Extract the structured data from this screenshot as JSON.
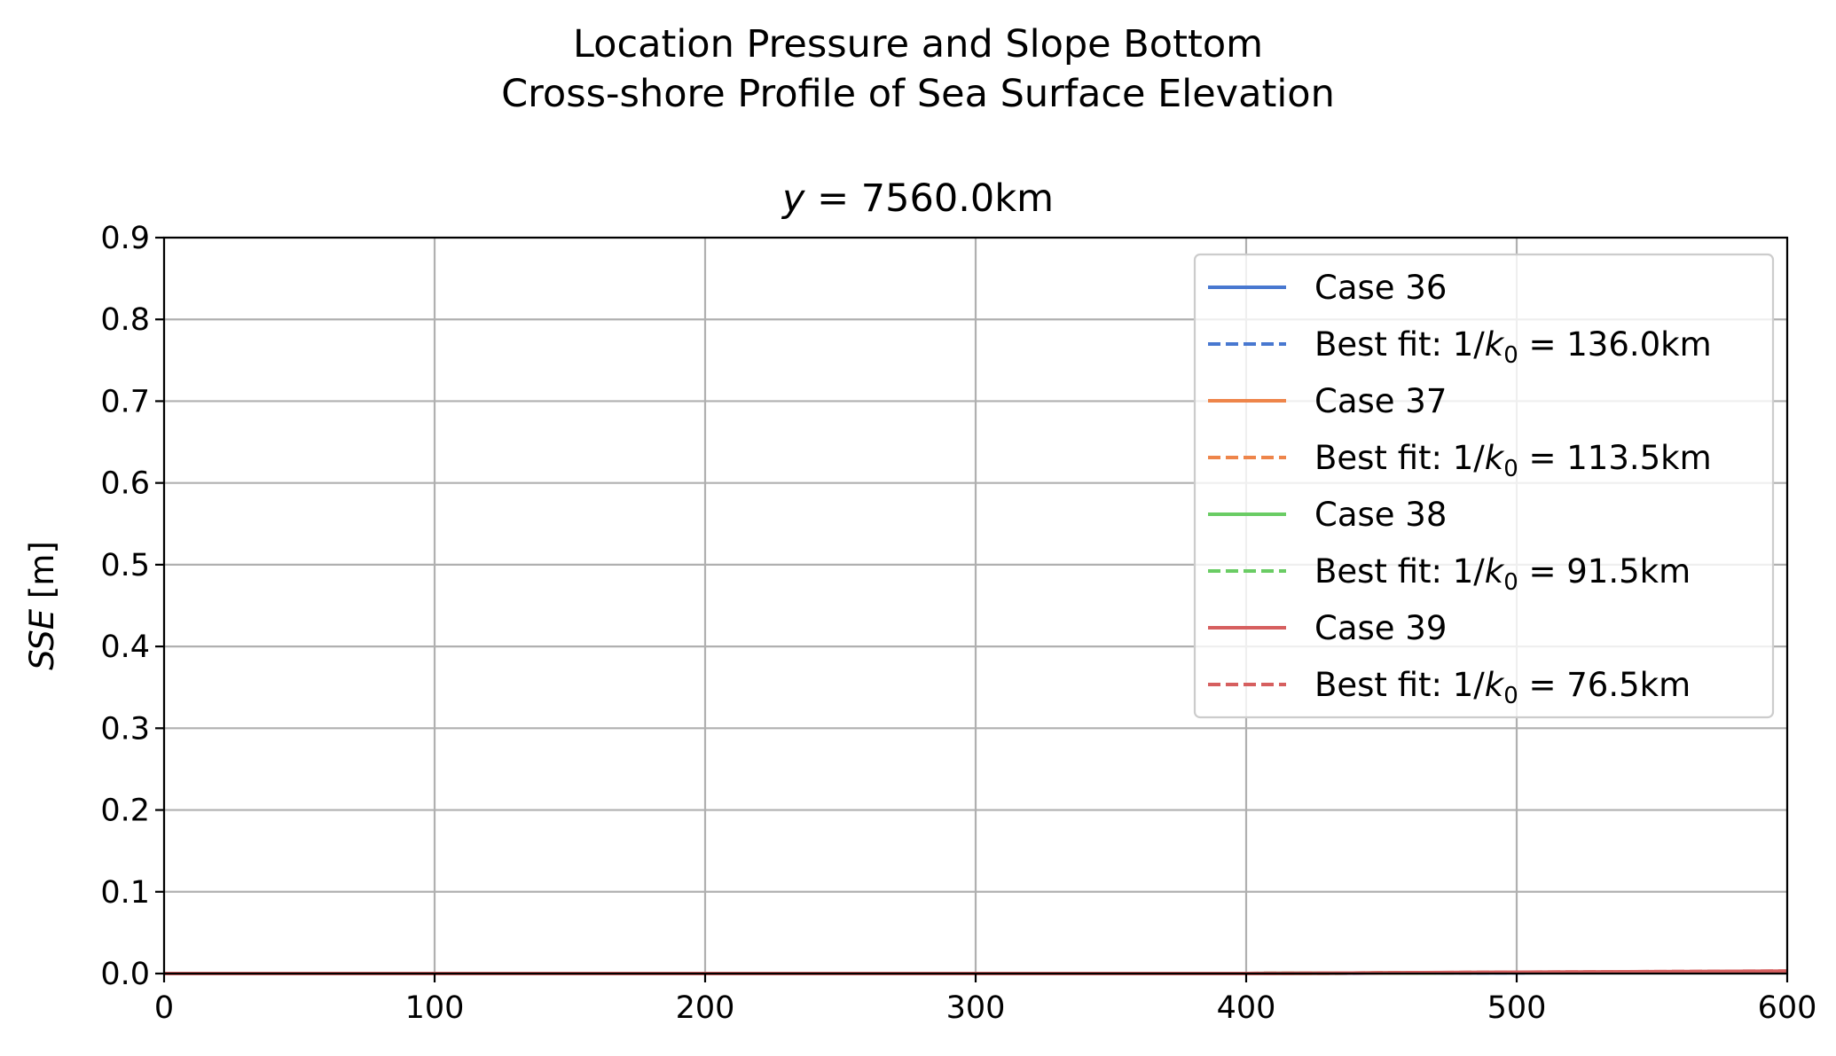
{
  "chart_data": {
    "type": "line",
    "suptitle": [
      "Location Pressure and Slope Bottom",
      "Cross-shore Profile of Sea Surface Elevation"
    ],
    "title_var": "y",
    "title_value": " = 7560.0km",
    "xlabel": "",
    "ylabel_var": "SSE",
    "ylabel_unit": " [m]",
    "xlim": [
      0,
      600
    ],
    "ylim": [
      0,
      0.9
    ],
    "xticks": [
      0,
      100,
      200,
      300,
      400,
      500,
      600
    ],
    "yticks": [
      0.0,
      0.1,
      0.2,
      0.3,
      0.4,
      0.5,
      0.6,
      0.7,
      0.8,
      0.9
    ],
    "grid": true,
    "legend_position": "top-right",
    "series": [
      {
        "name": "Case 36",
        "color": "#4878d0",
        "style": "solid",
        "x": [
          0,
          100,
          200,
          300,
          400,
          450,
          500,
          550,
          600
        ],
        "y": [
          0,
          0,
          0,
          0,
          0,
          0.0005,
          0.001,
          0.0015,
          0.002
        ]
      },
      {
        "name": "Best fit: 1/k0 = 136.0km",
        "label_prefix": "Best fit: 1/",
        "label_var": "k",
        "label_sub": "0",
        "label_suffix": " = 136.0km",
        "color": "#4878d0",
        "style": "dashed",
        "x": [
          0,
          100,
          200,
          300,
          400,
          450,
          500,
          550,
          600
        ],
        "y": [
          0,
          0,
          0,
          0,
          0,
          0.0005,
          0.001,
          0.0015,
          0.002
        ]
      },
      {
        "name": "Case 37",
        "color": "#ee854a",
        "style": "solid",
        "x": [
          0,
          100,
          200,
          300,
          400,
          450,
          500,
          550,
          600
        ],
        "y": [
          0,
          0,
          0,
          0,
          0,
          0.0006,
          0.0012,
          0.0018,
          0.0024
        ]
      },
      {
        "name": "Best fit: 1/k0 = 113.5km",
        "label_prefix": "Best fit: 1/",
        "label_var": "k",
        "label_sub": "0",
        "label_suffix": " = 113.5km",
        "color": "#ee854a",
        "style": "dashed",
        "x": [
          0,
          100,
          200,
          300,
          400,
          450,
          500,
          550,
          600
        ],
        "y": [
          0,
          0,
          0,
          0,
          0,
          0.0006,
          0.0012,
          0.0018,
          0.0024
        ]
      },
      {
        "name": "Case 38",
        "color": "#6acc64",
        "style": "solid",
        "x": [
          0,
          100,
          200,
          300,
          400,
          450,
          500,
          550,
          600
        ],
        "y": [
          0,
          0,
          0,
          0,
          0,
          0.0007,
          0.0014,
          0.002,
          0.0027
        ]
      },
      {
        "name": "Best fit: 1/k0 = 91.5km",
        "label_prefix": "Best fit: 1/",
        "label_var": "k",
        "label_sub": "0",
        "label_suffix": " = 91.5km",
        "color": "#6acc64",
        "style": "dashed",
        "x": [
          0,
          100,
          200,
          300,
          400,
          450,
          500,
          550,
          600
        ],
        "y": [
          0,
          0,
          0,
          0,
          0,
          0.0007,
          0.0014,
          0.002,
          0.0027
        ]
      },
      {
        "name": "Case 39",
        "color": "#d65f5f",
        "style": "solid",
        "x": [
          0,
          100,
          200,
          300,
          400,
          450,
          500,
          550,
          600
        ],
        "y": [
          0,
          0,
          0,
          0,
          0,
          0.0008,
          0.0016,
          0.0023,
          0.003
        ]
      },
      {
        "name": "Best fit: 1/k0 = 76.5km",
        "label_prefix": "Best fit: 1/",
        "label_var": "k",
        "label_sub": "0",
        "label_suffix": " = 76.5km",
        "color": "#d65f5f",
        "style": "dashed",
        "x": [
          0,
          100,
          200,
          300,
          400,
          450,
          500,
          550,
          600
        ],
        "y": [
          0,
          0,
          0,
          0,
          0,
          0.0008,
          0.0016,
          0.0023,
          0.003
        ]
      }
    ]
  }
}
